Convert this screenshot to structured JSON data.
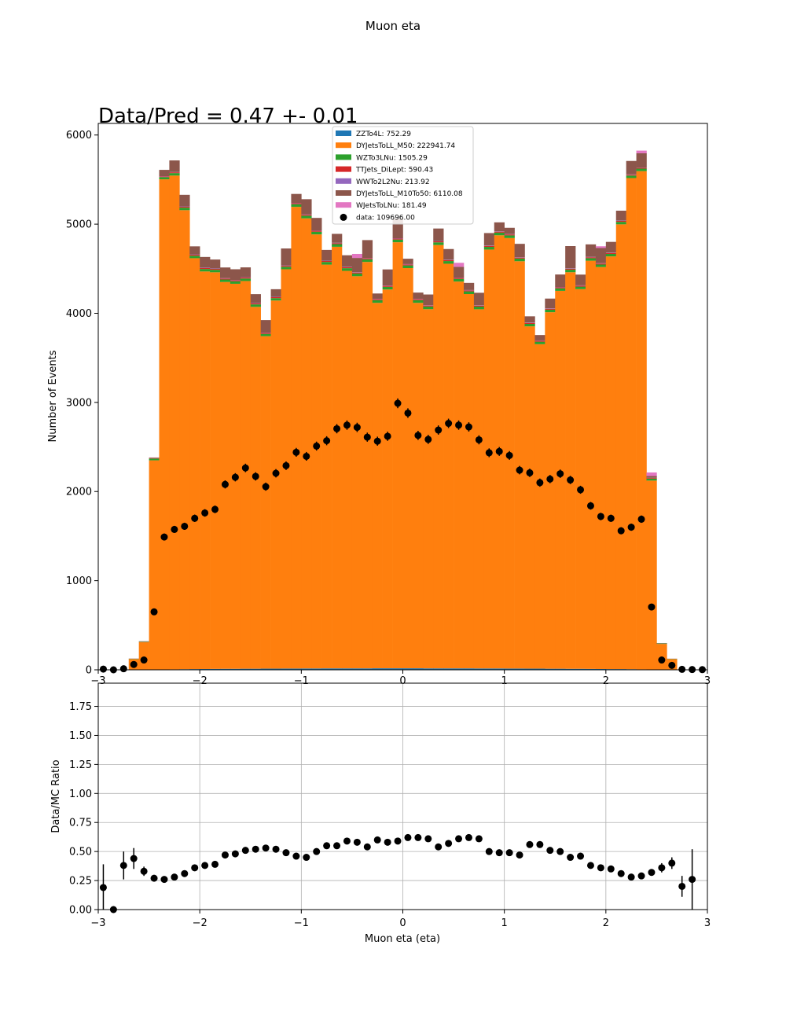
{
  "figure": {
    "suptitle": "Muon eta",
    "annotation": "Data/Pred = 0.47 +- 0.01"
  },
  "chart_data": [
    {
      "type": "bar",
      "stacked": true,
      "ylabel": "Number of Events",
      "xlim": [
        -3,
        3
      ],
      "ylim": [
        0,
        6130
      ],
      "xticks": [
        -3,
        -2,
        -1,
        0,
        1,
        2,
        3
      ],
      "xtick_labels": [
        "−3",
        "−2",
        "−1",
        "0",
        "1",
        "2",
        "3"
      ],
      "yticks": [
        0,
        1000,
        2000,
        3000,
        4000,
        5000,
        6000
      ],
      "ytick_labels": [
        "0",
        "1000",
        "2000",
        "3000",
        "4000",
        "5000",
        "6000"
      ],
      "legend_position": "top-center",
      "bin_edges": [
        -3.0,
        -2.9,
        -2.8,
        -2.7,
        -2.6,
        -2.5,
        -2.4,
        -2.3,
        -2.2,
        -2.1,
        -2.0,
        -1.9,
        -1.8,
        -1.7,
        -1.6,
        -1.5,
        -1.4,
        -1.3,
        -1.2,
        -1.1,
        -1.0,
        -0.9,
        -0.8,
        -0.7,
        -0.6,
        -0.5,
        -0.4,
        -0.3,
        -0.2,
        -0.1,
        0.0,
        0.1,
        0.2,
        0.3,
        0.4,
        0.5,
        0.6,
        0.7,
        0.8,
        0.9,
        1.0,
        1.1,
        1.2,
        1.3,
        1.4,
        1.5,
        1.6,
        1.7,
        1.8,
        1.9,
        2.0,
        2.1,
        2.2,
        2.3,
        2.4,
        2.5,
        2.6,
        2.7,
        2.8,
        2.9,
        3.0
      ],
      "series": [
        {
          "name": "ZZTo4L: 752.29",
          "color": "#1f77b4",
          "values": [
            0,
            0,
            0,
            0,
            0,
            0,
            3,
            5,
            7,
            8,
            9,
            10,
            11,
            11,
            12,
            12,
            13,
            13,
            14,
            14,
            15,
            15,
            16,
            16,
            16,
            16,
            16,
            17,
            17,
            17,
            17,
            17,
            16,
            16,
            16,
            16,
            16,
            15,
            15,
            15,
            14,
            14,
            13,
            13,
            12,
            12,
            11,
            11,
            10,
            9,
            8,
            8,
            7,
            5,
            3,
            0,
            0,
            0,
            0,
            0
          ]
        },
        {
          "name": "DYJetsToLL_M50: 222941.74",
          "color": "#ff7f0e",
          "values": [
            0,
            0,
            0,
            120,
            310,
            2350,
            5500,
            5540,
            5150,
            4610,
            4460,
            4450,
            4340,
            4320,
            4350,
            4060,
            3730,
            4130,
            4480,
            5180,
            5050,
            4870,
            4530,
            4730,
            4460,
            4400,
            4560,
            4100,
            4250,
            4780,
            4490,
            4100,
            4030,
            4750,
            4540,
            4340,
            4200,
            4030,
            4700,
            4860,
            4830,
            4570,
            3840,
            3640,
            4000,
            4240,
            4450,
            4260,
            4580,
            4510,
            4630,
            4990,
            5510,
            5590,
            2120,
            290,
            120,
            0,
            0,
            0
          ]
        },
        {
          "name": "WZTo3LNu: 1505.29",
          "color": "#2ca02c",
          "values": [
            0,
            0,
            0,
            3,
            5,
            20,
            25,
            28,
            28,
            28,
            28,
            28,
            28,
            28,
            28,
            28,
            26,
            27,
            28,
            30,
            30,
            30,
            30,
            30,
            30,
            30,
            30,
            30,
            30,
            30,
            30,
            30,
            30,
            30,
            30,
            30,
            30,
            30,
            30,
            30,
            30,
            30,
            28,
            28,
            28,
            28,
            28,
            28,
            28,
            28,
            28,
            28,
            28,
            28,
            22,
            5,
            3,
            0,
            0,
            0
          ]
        },
        {
          "name": "TTJets_DiLept: 590.43",
          "color": "#d62728",
          "values": [
            0,
            0,
            0,
            1,
            2,
            6,
            8,
            9,
            10,
            11,
            11,
            11,
            11,
            11,
            11,
            11,
            11,
            11,
            11,
            11,
            11,
            11,
            11,
            11,
            11,
            11,
            11,
            11,
            11,
            11,
            11,
            11,
            11,
            11,
            11,
            11,
            11,
            11,
            11,
            11,
            11,
            11,
            11,
            11,
            11,
            11,
            11,
            11,
            11,
            11,
            11,
            11,
            10,
            9,
            7,
            2,
            1,
            0,
            0,
            0
          ]
        },
        {
          "name": "WWTo2L2Nu: 213.92",
          "color": "#9467bd",
          "values": [
            0,
            0,
            0,
            0,
            1,
            2,
            3,
            3,
            4,
            4,
            4,
            4,
            4,
            4,
            4,
            4,
            4,
            4,
            4,
            4,
            4,
            4,
            4,
            4,
            4,
            4,
            4,
            4,
            4,
            4,
            4,
            4,
            4,
            4,
            4,
            4,
            4,
            4,
            4,
            4,
            4,
            4,
            4,
            4,
            4,
            4,
            4,
            4,
            4,
            4,
            4,
            4,
            4,
            3,
            2,
            1,
            0,
            0,
            0,
            0
          ]
        },
        {
          "name": "DYJetsToLL_M10To50: 6110.08",
          "color": "#8c564b",
          "values": [
            0,
            0,
            0,
            2,
            3,
            4,
            70,
            130,
            130,
            90,
            120,
            100,
            120,
            120,
            110,
            100,
            140,
            85,
            190,
            100,
            170,
            140,
            120,
            100,
            130,
            160,
            200,
            60,
            180,
            220,
            60,
            70,
            120,
            140,
            120,
            120,
            80,
            140,
            140,
            100,
            70,
            150,
            70,
            60,
            110,
            140,
            250,
            120,
            140,
            170,
            120,
            110,
            150,
            160,
            20,
            2,
            1,
            0,
            0,
            0
          ]
        },
        {
          "name": "WJetsToLNu: 181.49",
          "color": "#e377c2",
          "values": [
            0,
            0,
            0,
            0,
            0,
            0,
            0,
            0,
            0,
            0,
            0,
            0,
            0,
            0,
            0,
            0,
            0,
            0,
            0,
            0,
            0,
            0,
            0,
            0,
            0,
            45,
            0,
            0,
            0,
            0,
            0,
            0,
            0,
            0,
            0,
            45,
            0,
            0,
            0,
            0,
            0,
            0,
            0,
            0,
            0,
            0,
            0,
            0,
            0,
            20,
            0,
            0,
            0,
            30,
            40,
            0,
            0,
            0,
            0,
            0
          ]
        }
      ],
      "data_series": {
        "name": "data: 109696.00",
        "color": "#000000",
        "values": [
          8,
          0,
          12,
          60,
          110,
          650,
          1490,
          1575,
          1610,
          1700,
          1760,
          1800,
          2080,
          2160,
          2265,
          2170,
          2055,
          2205,
          2290,
          2440,
          2395,
          2510,
          2570,
          2705,
          2745,
          2720,
          2610,
          2565,
          2620,
          2990,
          2880,
          2630,
          2585,
          2690,
          2765,
          2745,
          2725,
          2580,
          2435,
          2450,
          2405,
          2240,
          2210,
          2100,
          2140,
          2200,
          2130,
          2020,
          1840,
          1720,
          1700,
          1560,
          1600,
          1690,
          705,
          110,
          50,
          5,
          3,
          2
        ]
      }
    },
    {
      "type": "scatter",
      "xlabel": "Muon eta (eta)",
      "ylabel": "Data/MC Ratio",
      "xlim": [
        -3,
        3
      ],
      "ylim": [
        0,
        1.95
      ],
      "grid": true,
      "xticks": [
        -3,
        -2,
        -1,
        0,
        1,
        2,
        3
      ],
      "xtick_labels": [
        "−3",
        "−2",
        "−1",
        "0",
        "1",
        "2",
        "3"
      ],
      "yticks": [
        0,
        0.25,
        0.5,
        0.75,
        1.0,
        1.25,
        1.5,
        1.75
      ],
      "ytick_labels": [
        "0.00",
        "0.25",
        "0.50",
        "0.75",
        "1.00",
        "1.25",
        "1.50",
        "1.75"
      ],
      "x": [
        -2.95,
        -2.85,
        -2.75,
        -2.65,
        -2.55,
        -2.45,
        -2.35,
        -2.25,
        -2.15,
        -2.05,
        -1.95,
        -1.85,
        -1.75,
        -1.65,
        -1.55,
        -1.45,
        -1.35,
        -1.25,
        -1.15,
        -1.05,
        -0.95,
        -0.85,
        -0.75,
        -0.65,
        -0.55,
        -0.45,
        -0.35,
        -0.25,
        -0.15,
        -0.05,
        0.05,
        0.15,
        0.25,
        0.35,
        0.45,
        0.55,
        0.65,
        0.75,
        0.85,
        0.95,
        1.05,
        1.15,
        1.25,
        1.35,
        1.45,
        1.55,
        1.65,
        1.75,
        1.85,
        1.95,
        2.05,
        2.15,
        2.25,
        2.35,
        2.45,
        2.55,
        2.65,
        2.75,
        2.85
      ],
      "values": [
        0.19,
        0.0,
        0.38,
        0.44,
        0.33,
        0.27,
        0.26,
        0.28,
        0.31,
        0.36,
        0.38,
        0.39,
        0.47,
        0.48,
        0.51,
        0.52,
        0.53,
        0.52,
        0.49,
        0.46,
        0.45,
        0.5,
        0.55,
        0.55,
        0.59,
        0.58,
        0.54,
        0.6,
        0.58,
        0.59,
        0.62,
        0.62,
        0.61,
        0.54,
        0.57,
        0.61,
        0.62,
        0.61,
        0.5,
        0.49,
        0.49,
        0.47,
        0.56,
        0.56,
        0.51,
        0.5,
        0.45,
        0.46,
        0.38,
        0.36,
        0.35,
        0.31,
        0.28,
        0.29,
        0.32,
        0.36,
        0.4,
        0.2,
        0.26
      ],
      "errors": [
        0.2,
        0.02,
        0.12,
        0.09,
        0.04,
        0.02,
        0.01,
        0.01,
        0.01,
        0.01,
        0.01,
        0.01,
        0.01,
        0.01,
        0.01,
        0.01,
        0.01,
        0.01,
        0.01,
        0.01,
        0.01,
        0.01,
        0.01,
        0.01,
        0.01,
        0.01,
        0.01,
        0.01,
        0.01,
        0.01,
        0.01,
        0.01,
        0.01,
        0.01,
        0.01,
        0.01,
        0.01,
        0.01,
        0.01,
        0.01,
        0.01,
        0.01,
        0.01,
        0.01,
        0.01,
        0.01,
        0.01,
        0.01,
        0.01,
        0.01,
        0.01,
        0.01,
        0.01,
        0.01,
        0.02,
        0.04,
        0.05,
        0.09,
        0.26
      ]
    }
  ]
}
